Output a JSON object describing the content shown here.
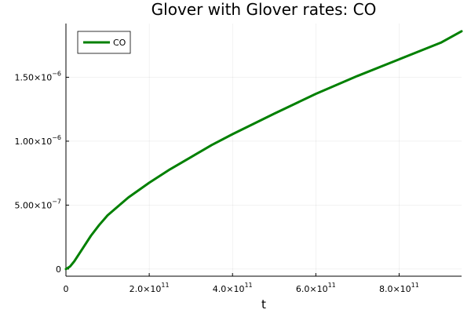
{
  "chart_data": {
    "type": "line",
    "title": "Glover with Glover rates: CO",
    "xlabel": "t",
    "ylabel": "",
    "xlim": [
      0,
      950000000000.0
    ],
    "ylim": [
      -5.6e-08,
      1.92e-06
    ],
    "grid": true,
    "legend_position": "top-left",
    "x_ticks": [
      {
        "value": 0,
        "mantissa": "0",
        "exponent": ""
      },
      {
        "value": 200000000000.0,
        "mantissa": "2.0×10",
        "exponent": "11"
      },
      {
        "value": 400000000000.0,
        "mantissa": "4.0×10",
        "exponent": "11"
      },
      {
        "value": 600000000000.0,
        "mantissa": "6.0×10",
        "exponent": "11"
      },
      {
        "value": 800000000000.0,
        "mantissa": "8.0×10",
        "exponent": "11"
      }
    ],
    "y_ticks": [
      {
        "value": 0,
        "mantissa": "0",
        "exponent": ""
      },
      {
        "value": 5e-07,
        "mantissa": "5.00×10",
        "exponent": "−7"
      },
      {
        "value": 1e-06,
        "mantissa": "1.00×10",
        "exponent": "−6"
      },
      {
        "value": 1.5e-06,
        "mantissa": "1.50×10",
        "exponent": "−6"
      }
    ],
    "series": [
      {
        "name": "CO",
        "color": "#008000",
        "x": [
          0,
          10000000000.0,
          20000000000.0,
          30000000000.0,
          40000000000.0,
          60000000000.0,
          80000000000.0,
          100000000000.0,
          150000000000.0,
          200000000000.0,
          250000000000.0,
          300000000000.0,
          350000000000.0,
          400000000000.0,
          500000000000.0,
          600000000000.0,
          700000000000.0,
          800000000000.0,
          900000000000.0,
          950000000000.0
        ],
        "y": [
          0,
          2e-08,
          6e-08,
          1.1e-07,
          1.6e-07,
          2.6e-07,
          3.45e-07,
          4.2e-07,
          5.6e-07,
          6.75e-07,
          7.8e-07,
          8.75e-07,
          9.7e-07,
          1.055e-06,
          1.215e-06,
          1.37e-06,
          1.51e-06,
          1.64e-06,
          1.77e-06,
          1.86e-06
        ]
      }
    ]
  }
}
